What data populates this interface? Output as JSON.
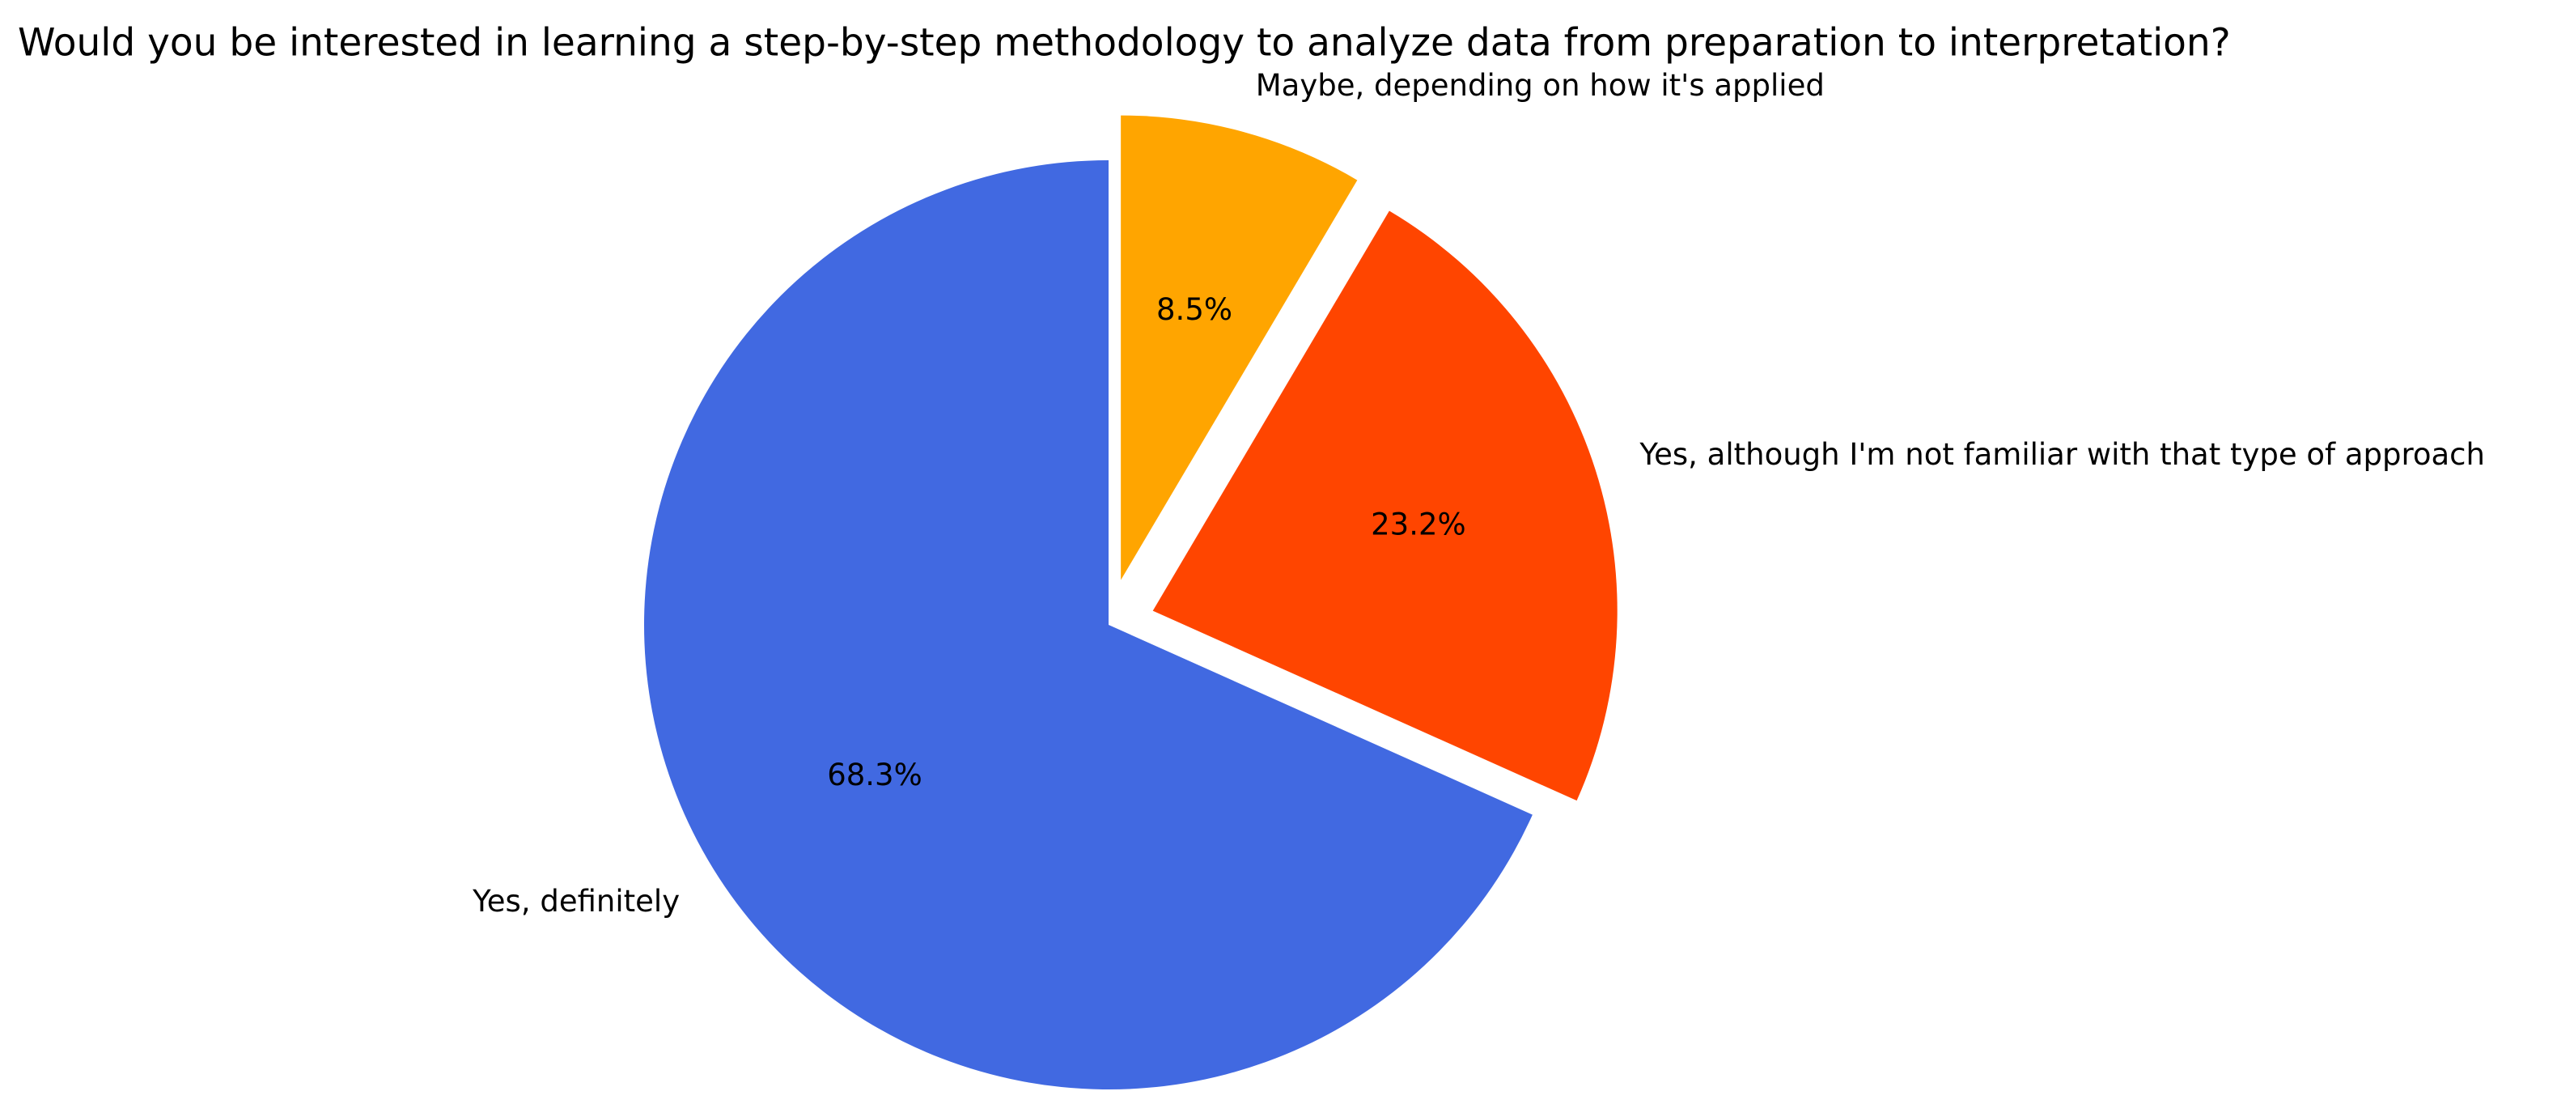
{
  "chart_data": {
    "type": "pie",
    "title": "Would you be interested in learning a step-by-step methodology to analyze data from preparation to interpretation?",
    "categories": [
      "Yes, definitely",
      "Yes, although I'm not familiar with that type of approach",
      "Maybe, depending on how it's applied"
    ],
    "values": [
      68.3,
      23.2,
      8.5
    ],
    "value_labels": [
      "68.3%",
      "23.2%",
      "8.5%"
    ],
    "colors": [
      "#4169e1",
      "#ff4500",
      "#ffa500"
    ]
  }
}
